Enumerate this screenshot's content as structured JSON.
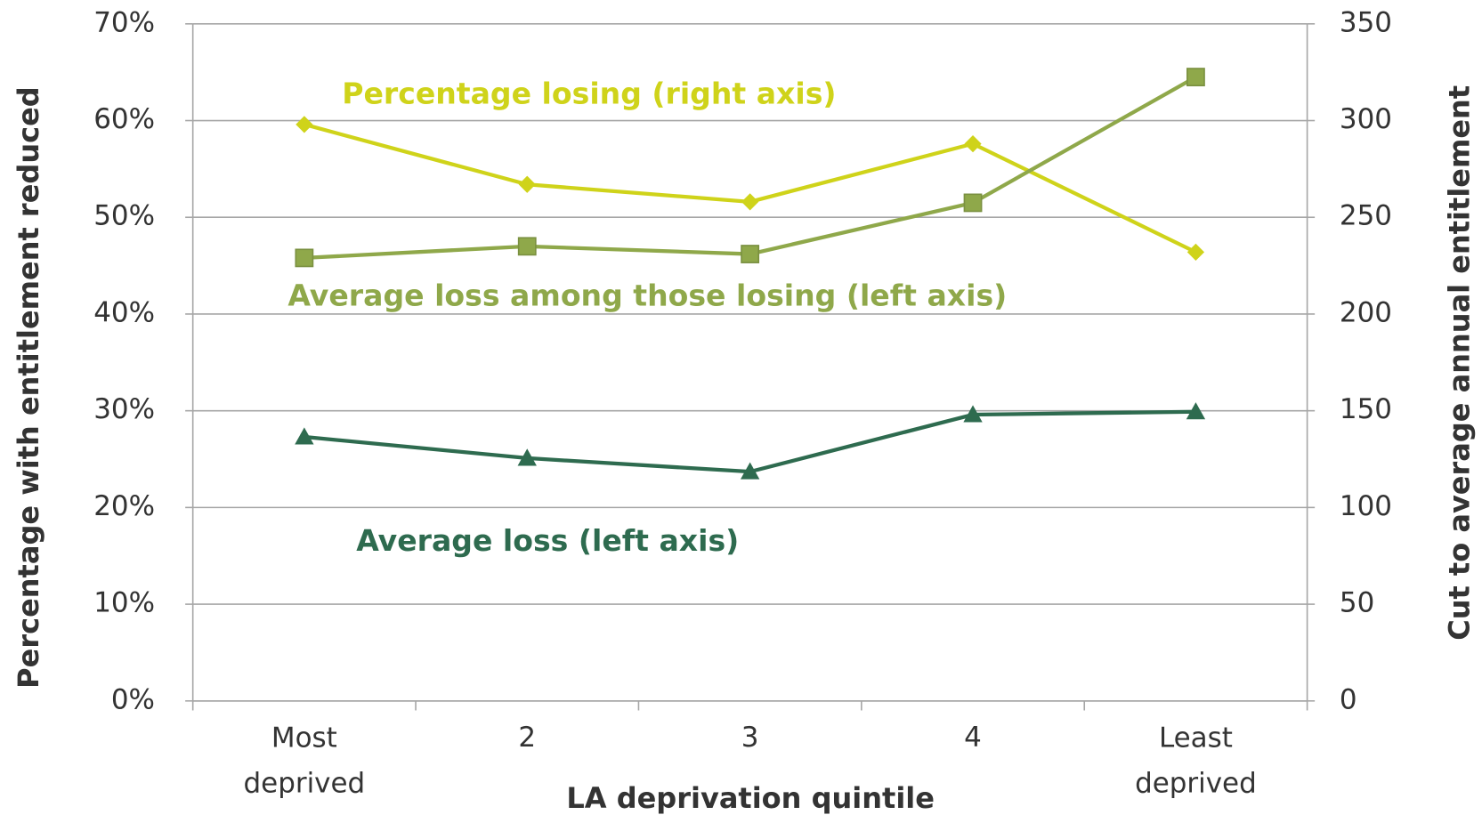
{
  "chart_data": {
    "type": "line",
    "x_label": "LA deprivation quintile",
    "y_label": "Percentage with entitlement reduced",
    "y2_label": "Cut to average annual entitlement",
    "categories": [
      "Most deprived",
      "2",
      "3",
      "4",
      "Least deprived"
    ],
    "ylim": [
      0,
      70
    ],
    "yticks": [
      {
        "value": 0,
        "label": "0%"
      },
      {
        "value": 10,
        "label": "10%"
      },
      {
        "value": 20,
        "label": "20%"
      },
      {
        "value": 30,
        "label": "30%"
      },
      {
        "value": 40,
        "label": "40%"
      },
      {
        "value": 50,
        "label": "50%"
      },
      {
        "value": 60,
        "label": "60%"
      },
      {
        "value": 70,
        "label": "70%"
      }
    ],
    "y2lim": [
      0,
      350
    ],
    "y2ticks": [
      0,
      50,
      100,
      150,
      200,
      250,
      300,
      350
    ],
    "grid": true,
    "series": [
      {
        "name": "Percentage losing (right axis)",
        "color": "#cfd31a",
        "marker": "diamond",
        "axis": "y2",
        "values": [
          298,
          267,
          258,
          288,
          232
        ]
      },
      {
        "name": "Average loss among those losing (left axis)",
        "color": "#8fa84a",
        "marker": "square",
        "values": [
          45.8,
          47.0,
          46.2,
          51.5,
          64.5
        ]
      },
      {
        "name": "Average loss (left axis)",
        "color": "#2e6b4f",
        "marker": "triangle",
        "values": [
          27.3,
          25.1,
          23.7,
          29.6,
          29.9
        ]
      }
    ]
  }
}
